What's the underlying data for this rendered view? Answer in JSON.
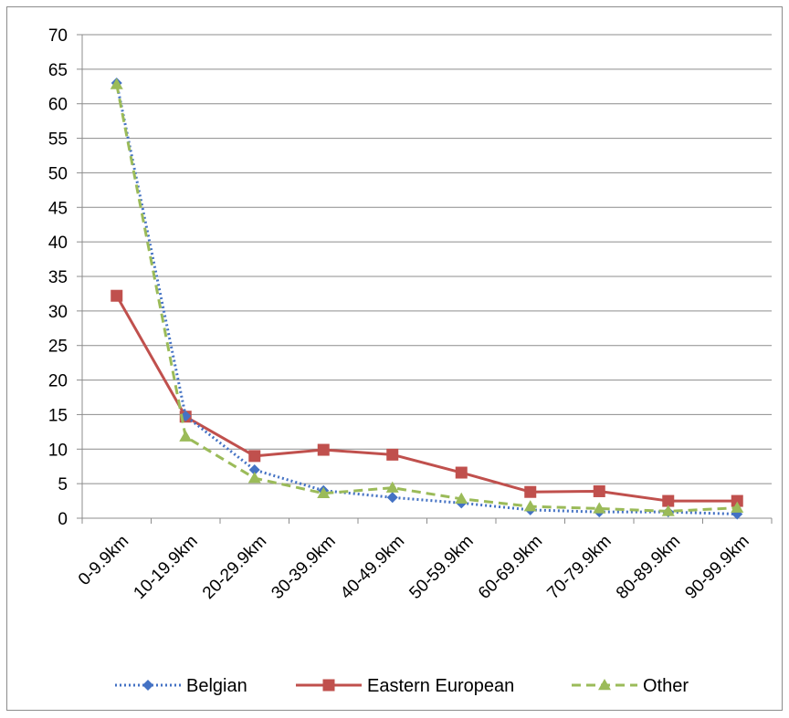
{
  "chart_data": {
    "type": "line",
    "title": "",
    "xlabel": "",
    "ylabel": "",
    "categories": [
      "0-9.9km",
      "10-19.9km",
      "20-29.9km",
      "30-39.9km",
      "40-49.9km",
      "50-59.9km",
      "60-69.9km",
      "70-79.9km",
      "80-89.9km",
      "90-99.9km"
    ],
    "ylim": [
      0,
      70
    ],
    "yticks": [
      0,
      5,
      10,
      15,
      20,
      25,
      30,
      35,
      40,
      45,
      50,
      55,
      60,
      65,
      70
    ],
    "grid": true,
    "legend_position": "bottom",
    "series": [
      {
        "name": "Belgian",
        "color": "#4472C4",
        "line": "dotted",
        "marker": "diamond",
        "values": [
          63,
          14.8,
          7,
          4,
          3,
          2.2,
          1.2,
          0.9,
          0.9,
          0.6
        ]
      },
      {
        "name": "Eastern European",
        "color": "#C0504D",
        "line": "solid",
        "marker": "square",
        "values": [
          32.2,
          14.7,
          9,
          9.9,
          9.2,
          6.6,
          3.8,
          3.9,
          2.5,
          2.5
        ]
      },
      {
        "name": "Other",
        "color": "#9BBB59",
        "line": "dashed",
        "marker": "triangle",
        "values": [
          62.8,
          11.8,
          5.8,
          3.6,
          4.4,
          2.8,
          1.7,
          1.4,
          1,
          1.5
        ]
      }
    ]
  }
}
